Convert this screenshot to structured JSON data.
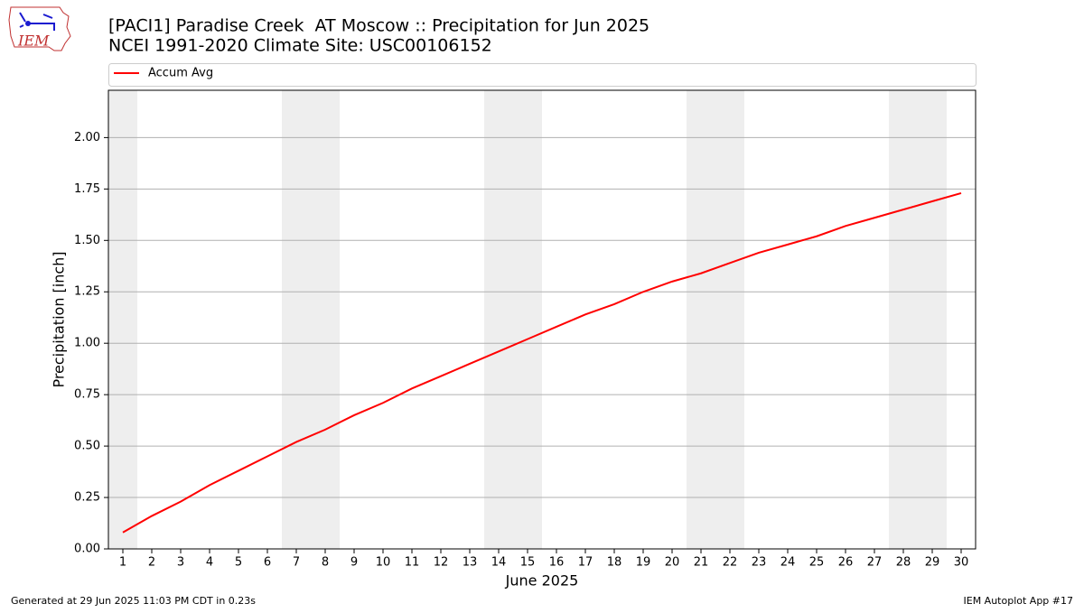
{
  "logo_text": "IEM",
  "footer": {
    "left": "Generated at 29 Jun 2025 11:03 PM CDT in 0.23s",
    "right": "IEM Autoplot App #17"
  },
  "chart_data": {
    "type": "line",
    "title": "[PACI1] Paradise Creek  AT Moscow :: Precipitation for Jun 2025",
    "subtitle": "NCEI 1991-2020 Climate Site: USC00106152",
    "x_label": "June 2025",
    "y_label": "Precipitation [inch]",
    "x": [
      1,
      2,
      3,
      4,
      5,
      6,
      7,
      8,
      9,
      10,
      11,
      12,
      13,
      14,
      15,
      16,
      17,
      18,
      19,
      20,
      21,
      22,
      23,
      24,
      25,
      26,
      27,
      28,
      29,
      30
    ],
    "series": [
      {
        "name": "Accum Avg",
        "color": "#ff0000",
        "values": [
          0.08,
          0.16,
          0.23,
          0.31,
          0.38,
          0.45,
          0.52,
          0.58,
          0.65,
          0.71,
          0.78,
          0.84,
          0.9,
          0.96,
          1.02,
          1.08,
          1.14,
          1.19,
          1.25,
          1.3,
          1.34,
          1.39,
          1.44,
          1.48,
          1.52,
          1.57,
          1.61,
          1.65,
          1.69,
          1.73
        ]
      }
    ],
    "xlim": [
      0.5,
      30.5
    ],
    "xticks": [
      1,
      2,
      3,
      4,
      5,
      6,
      7,
      8,
      9,
      10,
      11,
      12,
      13,
      14,
      15,
      16,
      17,
      18,
      19,
      20,
      21,
      22,
      23,
      24,
      25,
      26,
      27,
      28,
      29,
      30
    ],
    "ylim": [
      0,
      2.23
    ],
    "yticks": [
      {
        "value": 0,
        "label": "0.00"
      },
      {
        "value": 0.25,
        "label": "0.25"
      },
      {
        "value": 0.5,
        "label": "0.50"
      },
      {
        "value": 0.75,
        "label": "0.75"
      },
      {
        "value": 1,
        "label": "1.00"
      },
      {
        "value": 1.25,
        "label": "1.25"
      },
      {
        "value": 1.5,
        "label": "1.50"
      },
      {
        "value": 1.75,
        "label": "1.75"
      },
      {
        "value": 2,
        "label": "2.00"
      }
    ],
    "shaded_ranges": [
      [
        0.5,
        1.5
      ],
      [
        6.5,
        8.5
      ],
      [
        13.5,
        15.5
      ],
      [
        20.5,
        22.5
      ],
      [
        27.5,
        29.5
      ]
    ],
    "shade_color": "#eeeeee",
    "grid": true,
    "legend_position": "top"
  }
}
